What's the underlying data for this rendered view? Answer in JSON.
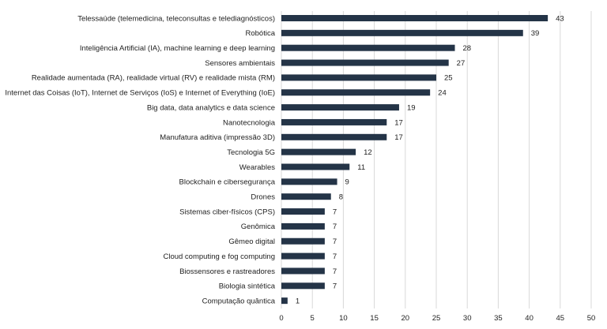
{
  "chart_data": {
    "type": "bar",
    "orientation": "horizontal",
    "title": "",
    "xlabel": "",
    "ylabel": "",
    "xlim": [
      0,
      50
    ],
    "x_ticks": [
      0,
      5,
      10,
      15,
      20,
      25,
      30,
      35,
      40,
      45,
      50
    ],
    "grid": "vertical",
    "legend": "none",
    "bar_color": "#243447",
    "categories": [
      "Telessaúde (telemedicina, teleconsultas e telediagnósticos)",
      "Robótica",
      "Inteligência Artificial (IA), machine learning e deep learning",
      "Sensores ambientais",
      "Realidade aumentada (RA), realidade virtual (RV) e realidade mista (RM)",
      "Internet das Coisas (IoT), Internet de Serviços (IoS) e Internet of Everything (IoE)",
      "Big data, data analytics e data science",
      "Nanotecnologia",
      "Manufatura aditiva (impressão 3D)",
      "Tecnologia 5G",
      "Wearables",
      "Blockchain e cibersegurança",
      "Drones",
      "Sistemas ciber-físicos (CPS)",
      "Genômica",
      "Gêmeo digital",
      "Cloud computing e fog computing",
      "Biossensores e rastreadores",
      "Biologia sintética",
      "Computação quântica"
    ],
    "values": [
      43,
      39,
      28,
      27,
      25,
      24,
      19,
      17,
      17,
      12,
      11,
      9,
      8,
      7,
      7,
      7,
      7,
      7,
      7,
      1
    ]
  }
}
